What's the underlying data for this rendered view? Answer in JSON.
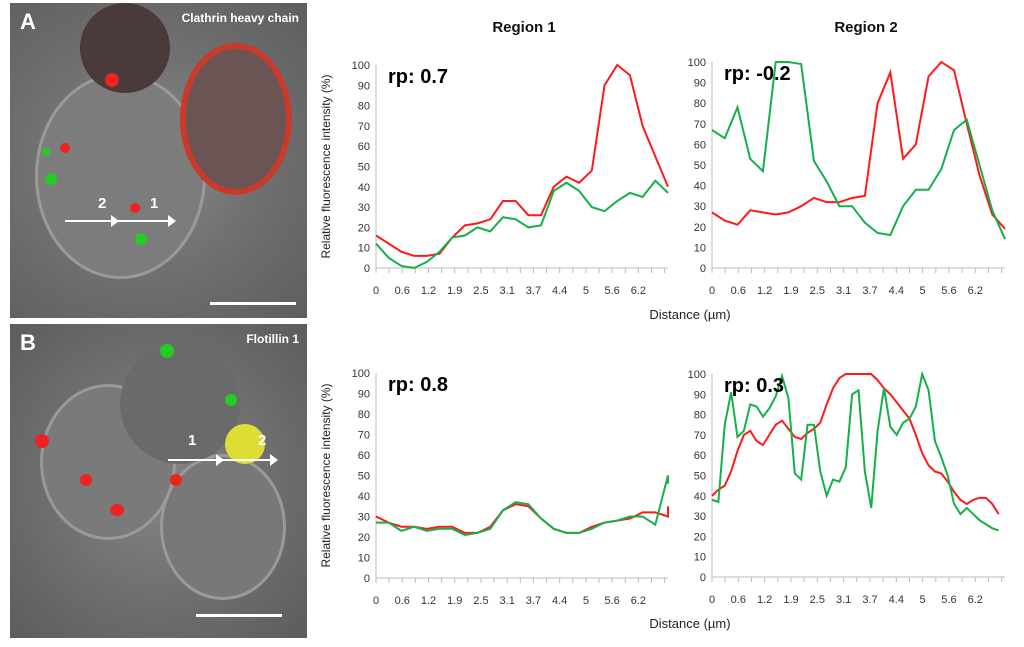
{
  "panels": [
    {
      "label": "A",
      "title": "Clathrin heavy chain",
      "arrow_labels": [
        "2",
        "1"
      ]
    },
    {
      "label": "B",
      "title": "Flotillin 1",
      "arrow_labels": [
        "1",
        "2"
      ]
    }
  ],
  "column_titles": [
    "Region 1",
    "Region 2"
  ],
  "colors": {
    "red": "#ff1a1a",
    "green": "#16b04a"
  },
  "chart_data": [
    {
      "type": "line",
      "panel": "A",
      "region": "Region 1",
      "annotation": "rp: 0.7",
      "ylabel": "Relative fluorescence intensity (%)",
      "xlabel": "Distance (µm)",
      "ylim": [
        0,
        100
      ],
      "yticks": [
        "0",
        "10",
        "20",
        "30",
        "40",
        "50",
        "60",
        "70",
        "80",
        "90",
        "100"
      ],
      "xticks": [
        "0",
        "0.6",
        "1.2",
        "1.9",
        "2.5",
        "3.1",
        "3.7",
        "4.4",
        "5",
        "5.6",
        "6.2"
      ],
      "x_step": 0.3,
      "series": [
        {
          "name": "red",
          "values": [
            16,
            12,
            8,
            6,
            6,
            7,
            15,
            21,
            22,
            24,
            33,
            33,
            26,
            26,
            40,
            45,
            42,
            48,
            90,
            100,
            95,
            70,
            55,
            40
          ]
        },
        {
          "name": "green",
          "values": [
            12,
            5,
            1,
            0,
            3,
            8,
            15,
            16,
            20,
            18,
            25,
            24,
            20,
            21,
            38,
            42,
            38,
            30,
            28,
            33,
            37,
            35,
            43,
            37
          ]
        }
      ]
    },
    {
      "type": "line",
      "panel": "A",
      "region": "Region 2",
      "annotation": "rp: -0.2",
      "xlabel": "Distance (µm)",
      "ylim": [
        0,
        100
      ],
      "yticks": [
        "0",
        "10",
        "20",
        "30",
        "40",
        "50",
        "60",
        "70",
        "80",
        "90",
        "100"
      ],
      "xticks": [
        "0",
        "0.6",
        "1.2",
        "1.9",
        "2.5",
        "3.1",
        "3.7",
        "4.4",
        "5",
        "5.6",
        "6.2"
      ],
      "x_step": 0.3,
      "series": [
        {
          "name": "red",
          "values": [
            27,
            23,
            21,
            28,
            27,
            26,
            27,
            30,
            34,
            32,
            32,
            34,
            35,
            80,
            95,
            53,
            60,
            93,
            100,
            96,
            70,
            45,
            26,
            19
          ]
        },
        {
          "name": "green",
          "values": [
            67,
            63,
            78,
            53,
            47,
            100,
            100,
            99,
            52,
            42,
            30,
            30,
            22,
            17,
            16,
            30,
            38,
            38,
            48,
            67,
            72,
            50,
            28,
            14
          ]
        }
      ]
    },
    {
      "type": "line",
      "panel": "B",
      "region": "Region 1",
      "annotation": "rp: 0.8",
      "ylabel": "Relative fluorescence intensity (%)",
      "xlabel": "Distance (µm)",
      "ylim": [
        0,
        100
      ],
      "yticks": [
        "0",
        "10",
        "20",
        "30",
        "40",
        "50",
        "60",
        "70",
        "80",
        "90",
        "100"
      ],
      "xticks": [
        "0",
        "0.6",
        "1.2",
        "1.9",
        "2.5",
        "3.1",
        "3.7",
        "4.4",
        "5",
        "5.6",
        "6.2"
      ],
      "x_step": 0.3,
      "series": [
        {
          "name": "red",
          "values": [
            30,
            27,
            25,
            25,
            24,
            25,
            25,
            22,
            22,
            25,
            33,
            36,
            35,
            29,
            24,
            22,
            22,
            25,
            27,
            28,
            29,
            32,
            32,
            30,
            35
          ]
        },
        {
          "name": "green",
          "values": [
            27,
            27,
            23,
            25,
            23,
            24,
            24,
            21,
            22,
            24,
            33,
            37,
            36,
            29,
            24,
            22,
            22,
            24,
            27,
            28,
            30,
            30,
            26,
            50,
            46
          ]
        }
      ]
    },
    {
      "type": "line",
      "panel": "B",
      "region": "Region 2",
      "annotation": "rp: 0.3",
      "xlabel": "Distance (µm)",
      "ylim": [
        0,
        100
      ],
      "yticks": [
        "0",
        "10",
        "20",
        "30",
        "40",
        "50",
        "60",
        "70",
        "80",
        "90",
        "100"
      ],
      "xticks": [
        "0",
        "0.6",
        "1.2",
        "1.9",
        "2.5",
        "3.1",
        "3.7",
        "4.4",
        "5",
        "5.6",
        "6.2"
      ],
      "x_step": 0.15,
      "series": [
        {
          "name": "red",
          "values": [
            40,
            43,
            45,
            52,
            62,
            70,
            72,
            67,
            65,
            70,
            75,
            77,
            73,
            69,
            68,
            71,
            73,
            76,
            85,
            93,
            98,
            100,
            100,
            100,
            100,
            100,
            97,
            93,
            90,
            86,
            82,
            78,
            70,
            61,
            55,
            52,
            51,
            47,
            42,
            38,
            36,
            38,
            39,
            39,
            36,
            31
          ]
        },
        {
          "name": "green",
          "values": [
            38,
            37,
            75,
            91,
            69,
            72,
            85,
            84,
            79,
            83,
            89,
            99,
            88,
            51,
            48,
            75,
            75,
            52,
            40,
            48,
            47,
            54,
            90,
            92,
            52,
            34,
            72,
            93,
            74,
            70,
            76,
            78,
            84,
            100,
            92,
            67,
            59,
            50,
            36,
            31,
            34,
            31,
            28,
            26,
            24,
            23
          ]
        }
      ]
    }
  ]
}
